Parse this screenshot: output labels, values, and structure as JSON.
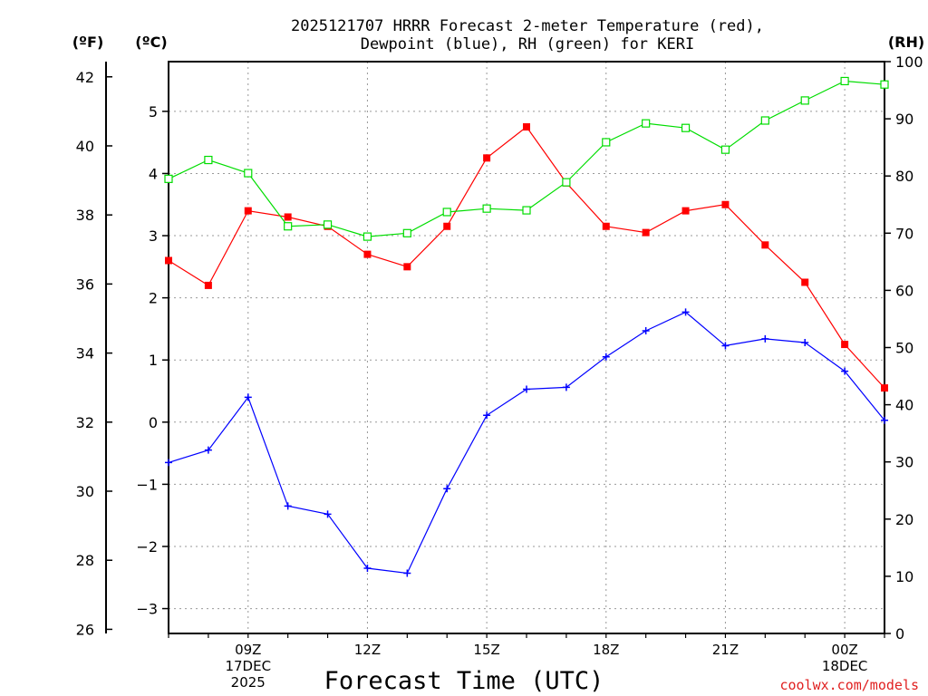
{
  "chart_data": {
    "type": "line",
    "title": "2025121707 HRRR Forecast 2-meter Temperature (red),",
    "title_line2": "Dewpoint (blue), RH (green) for KERI",
    "xlabel": "Forecast Time (UTC)",
    "credit": "coolwx.com/models",
    "unit_f": "(ºF)",
    "unit_c": "(ºC)",
    "unit_rh": "(RH)",
    "x_hours": [
      7,
      8,
      9,
      10,
      11,
      12,
      13,
      14,
      15,
      16,
      17,
      18,
      19,
      20,
      21,
      22,
      23,
      24,
      25
    ],
    "x_ticks": [
      {
        "hour": 9,
        "lines": [
          "09Z",
          "17DEC",
          "2025"
        ]
      },
      {
        "hour": 12,
        "lines": [
          "12Z"
        ]
      },
      {
        "hour": 15,
        "lines": [
          "15Z"
        ]
      },
      {
        "hour": 18,
        "lines": [
          "18Z"
        ]
      },
      {
        "hour": 21,
        "lines": [
          "21Z"
        ]
      },
      {
        "hour": 24,
        "lines": [
          "00Z",
          "18DEC"
        ]
      }
    ],
    "celsius_axis": {
      "min": -3.4,
      "max": 5.8,
      "ticks": [
        -3,
        -2,
        -1,
        0,
        1,
        2,
        3,
        4,
        5
      ]
    },
    "fahrenheit_axis": {
      "ticks": [
        26,
        28,
        30,
        32,
        34,
        36,
        38,
        40,
        42
      ]
    },
    "rh_axis": {
      "min": 0,
      "max": 100,
      "ticks": [
        0,
        10,
        20,
        30,
        40,
        50,
        60,
        70,
        80,
        90,
        100
      ]
    },
    "series": [
      {
        "name": "Temperature",
        "unit": "C",
        "color": "#ff0000",
        "marker": "square-filled",
        "values": [
          2.6,
          2.2,
          3.4,
          3.3,
          3.15,
          2.7,
          2.5,
          3.15,
          4.25,
          4.75,
          3.85,
          3.15,
          3.05,
          3.4,
          3.5,
          2.85,
          2.25,
          1.25,
          0.55
        ]
      },
      {
        "name": "Dewpoint",
        "unit": "C",
        "color": "#0000ff",
        "marker": "plus",
        "values": [
          -0.65,
          -0.45,
          0.4,
          -1.35,
          -1.48,
          -2.35,
          -2.43,
          -1.07,
          0.11,
          0.53,
          0.56,
          1.05,
          1.47,
          1.77,
          1.23,
          1.34,
          1.28,
          0.82,
          0.03
        ]
      },
      {
        "name": "RH",
        "unit": "%",
        "color": "#00dd00",
        "marker": "square-open",
        "values": [
          79.5,
          82.8,
          80.5,
          71.2,
          71.5,
          69.4,
          70.0,
          73.7,
          74.3,
          74.0,
          78.9,
          85.9,
          89.2,
          88.4,
          84.6,
          89.7,
          93.2,
          96.6,
          96.0
        ]
      }
    ]
  }
}
